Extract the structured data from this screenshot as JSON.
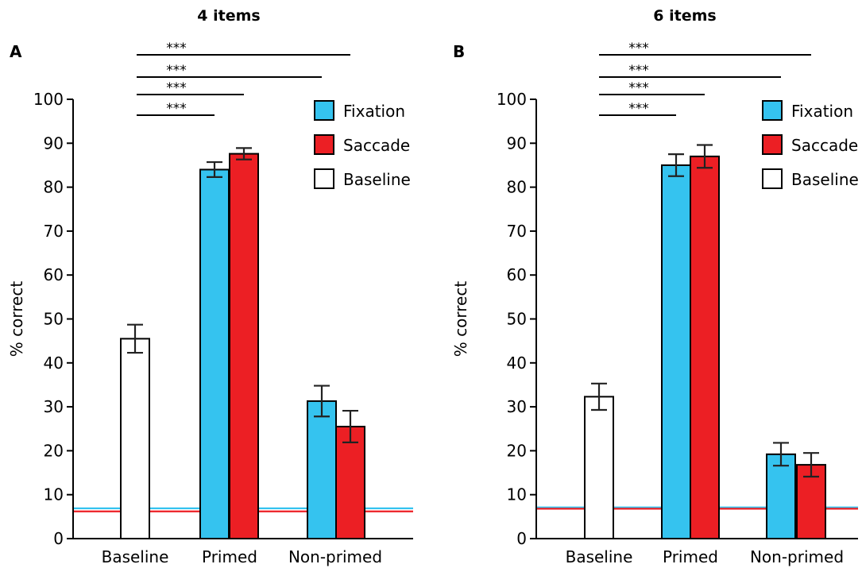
{
  "colors": {
    "Fixation": "#35c3ef",
    "Saccade": "#ec1f24",
    "Baseline": "#ffffff",
    "chance_fixation": "#35c3ef",
    "chance_saccade": "#ec1f24"
  },
  "chart_data": [
    {
      "type": "bar",
      "panel": "A",
      "title": "4 items",
      "ylabel": "% correct",
      "xlabel": "",
      "ylim": [
        0,
        100
      ],
      "yticks": [
        0,
        10,
        20,
        30,
        40,
        50,
        60,
        70,
        80,
        90,
        100
      ],
      "categories": [
        "Baseline",
        "Primed",
        "Non-primed"
      ],
      "legend": {
        "position": "top-right",
        "entries": [
          {
            "name": "Fixation",
            "color": "#35c3ef"
          },
          {
            "name": "Saccade",
            "color": "#ec1f24"
          },
          {
            "name": "Baseline",
            "color": "#ffffff"
          }
        ]
      },
      "bars": [
        {
          "category": "Baseline",
          "series": "Baseline",
          "value": 45.5,
          "err": 3.2
        },
        {
          "category": "Primed",
          "series": "Fixation",
          "value": 84.0,
          "err": 1.7
        },
        {
          "category": "Primed",
          "series": "Saccade",
          "value": 87.6,
          "err": 1.3
        },
        {
          "category": "Non-primed",
          "series": "Fixation",
          "value": 31.3,
          "err": 3.5
        },
        {
          "category": "Non-primed",
          "series": "Saccade",
          "value": 25.5,
          "err": 3.6
        }
      ],
      "chance_lines": [
        {
          "series": "Fixation",
          "value": 6.9
        },
        {
          "series": "Saccade",
          "value": 6.2
        }
      ],
      "significance": [
        {
          "from": "Baseline",
          "to": "Primed:Fixation",
          "label": "***"
        },
        {
          "from": "Baseline",
          "to": "Primed:Saccade",
          "label": "***"
        },
        {
          "from": "Baseline",
          "to": "Non-primed:Fixation",
          "label": "***"
        },
        {
          "from": "Baseline",
          "to": "Non-primed:Saccade",
          "label": "***"
        }
      ]
    },
    {
      "type": "bar",
      "panel": "B",
      "title": "6 items",
      "ylabel": "% correct",
      "xlabel": "",
      "ylim": [
        0,
        100
      ],
      "yticks": [
        0,
        10,
        20,
        30,
        40,
        50,
        60,
        70,
        80,
        90,
        100
      ],
      "categories": [
        "Baseline",
        "Primed",
        "Non-primed"
      ],
      "legend": {
        "position": "top-right",
        "entries": [
          {
            "name": "Fixation",
            "color": "#35c3ef"
          },
          {
            "name": "Saccade",
            "color": "#ec1f24"
          },
          {
            "name": "Baseline",
            "color": "#ffffff"
          }
        ]
      },
      "bars": [
        {
          "category": "Baseline",
          "series": "Baseline",
          "value": 32.3,
          "err": 3.0
        },
        {
          "category": "Primed",
          "series": "Fixation",
          "value": 85.0,
          "err": 2.5
        },
        {
          "category": "Primed",
          "series": "Saccade",
          "value": 87.0,
          "err": 2.6
        },
        {
          "category": "Non-primed",
          "series": "Fixation",
          "value": 19.2,
          "err": 2.6
        },
        {
          "category": "Non-primed",
          "series": "Saccade",
          "value": 16.8,
          "err": 2.7
        }
      ],
      "chance_lines": [
        {
          "series": "Fixation",
          "value": 7.1
        },
        {
          "series": "Saccade",
          "value": 6.8
        }
      ],
      "significance": [
        {
          "from": "Baseline",
          "to": "Primed:Fixation",
          "label": "***"
        },
        {
          "from": "Baseline",
          "to": "Primed:Saccade",
          "label": "***"
        },
        {
          "from": "Baseline",
          "to": "Non-primed:Fixation",
          "label": "***"
        },
        {
          "from": "Baseline",
          "to": "Non-primed:Saccade",
          "label": "***"
        }
      ]
    }
  ]
}
